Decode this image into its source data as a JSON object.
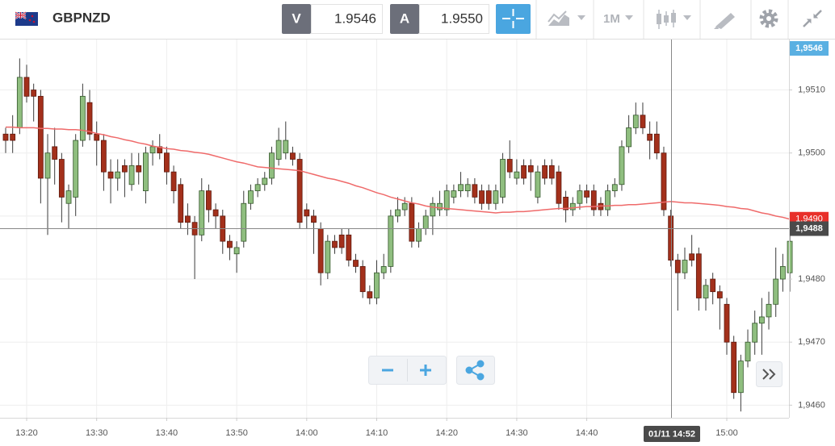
{
  "toolbar": {
    "symbol": "GBPNZD",
    "bid_tag": "V",
    "bid": "1.9546",
    "ask_tag": "A",
    "ask": "1.9550",
    "timeframe": "1M"
  },
  "chart_data": {
    "type": "candlestick",
    "categories": [
      null,
      null,
      null,
      "13:20",
      null,
      null,
      null,
      null,
      null,
      null,
      null,
      null,
      null,
      "13:30",
      null,
      null,
      null,
      null,
      null,
      null,
      null,
      null,
      null,
      "13:40",
      null,
      null,
      null,
      null,
      null,
      null,
      null,
      null,
      null,
      "13:50",
      null,
      null,
      null,
      null,
      null,
      null,
      null,
      null,
      null,
      "14:00",
      null,
      null,
      null,
      null,
      null,
      null,
      null,
      null,
      null,
      "14:10",
      null,
      null,
      null,
      null,
      null,
      null,
      null,
      null,
      null,
      "14:20",
      null,
      null,
      null,
      null,
      null,
      null,
      null,
      null,
      null,
      "14:30",
      null,
      null,
      null,
      null,
      null,
      null,
      null,
      null,
      null,
      "14:40",
      null,
      null,
      null,
      null,
      null,
      null,
      null,
      null,
      null,
      null,
      null,
      null,
      null,
      null,
      null,
      null,
      null,
      null,
      null,
      "15:00",
      null,
      null,
      null,
      null,
      null,
      null,
      null,
      null,
      null
    ],
    "ohlc": [
      [
        1.9503,
        1.9504,
        1.95,
        1.9502
      ],
      [
        1.9503,
        1.9506,
        1.95,
        1.9502
      ],
      [
        1.9504,
        1.9515,
        1.9503,
        1.9512
      ],
      [
        1.9512,
        1.9514,
        1.9508,
        1.9509
      ],
      [
        1.951,
        1.9511,
        1.9505,
        1.9509
      ],
      [
        1.9509,
        1.951,
        1.9492,
        1.9496
      ],
      [
        1.9496,
        1.9503,
        1.9487,
        1.95
      ],
      [
        1.9501,
        1.9504,
        1.9495,
        1.9499
      ],
      [
        1.9499,
        1.95,
        1.9489,
        1.9493
      ],
      [
        1.9492,
        1.9495,
        1.9488,
        1.9494
      ],
      [
        1.9493,
        1.9503,
        1.949,
        1.9502
      ],
      [
        1.9502,
        1.9511,
        1.9501,
        1.9509
      ],
      [
        1.9508,
        1.951,
        1.9502,
        1.9503
      ],
      [
        1.9503,
        1.9505,
        1.9498,
        1.9502
      ],
      [
        1.9502,
        1.9503,
        1.9494,
        1.9497
      ],
      [
        1.9497,
        1.9499,
        1.9492,
        1.9496
      ],
      [
        1.9496,
        1.9499,
        1.9494,
        1.9497
      ],
      [
        1.9498,
        1.9499,
        1.9493,
        1.9497
      ],
      [
        1.9495,
        1.95,
        1.9494,
        1.9498
      ],
      [
        1.9498,
        1.95,
        1.9495,
        1.9497
      ],
      [
        1.9494,
        1.9501,
        1.9492,
        1.95
      ],
      [
        1.95,
        1.9502,
        1.9498,
        1.9501
      ],
      [
        1.9501,
        1.9503,
        1.9499,
        1.95
      ],
      [
        1.95,
        1.9501,
        1.9495,
        1.9497
      ],
      [
        1.9497,
        1.9498,
        1.9492,
        1.9494
      ],
      [
        1.9495,
        1.9496,
        1.9488,
        1.9489
      ],
      [
        1.949,
        1.9492,
        1.9487,
        1.9489
      ],
      [
        1.9489,
        1.949,
        1.948,
        1.9487
      ],
      [
        1.9487,
        1.9496,
        1.9486,
        1.9494
      ],
      [
        1.9494,
        1.9495,
        1.9489,
        1.9491
      ],
      [
        1.9491,
        1.9492,
        1.9488,
        1.949
      ],
      [
        1.949,
        1.9491,
        1.9484,
        1.9486
      ],
      [
        1.9486,
        1.9487,
        1.9483,
        1.9485
      ],
      [
        1.9484,
        1.9486,
        1.9481,
        1.9485
      ],
      [
        1.9486,
        1.9494,
        1.9485,
        1.9492
      ],
      [
        1.9492,
        1.9495,
        1.9491,
        1.9494
      ],
      [
        1.9494,
        1.9496,
        1.9493,
        1.9495
      ],
      [
        1.9495,
        1.9497,
        1.9494,
        1.9496
      ],
      [
        1.9496,
        1.9501,
        1.9495,
        1.95
      ],
      [
        1.9499,
        1.9504,
        1.9498,
        1.9502
      ],
      [
        1.95,
        1.9505,
        1.9499,
        1.9502
      ],
      [
        1.95,
        1.9501,
        1.9498,
        1.9499
      ],
      [
        1.9499,
        1.95,
        1.9488,
        1.9489
      ],
      [
        1.9491,
        1.9492,
        1.9488,
        1.949
      ],
      [
        1.949,
        1.9491,
        1.9484,
        1.9489
      ],
      [
        1.9488,
        1.9489,
        1.9479,
        1.9481
      ],
      [
        1.9481,
        1.9487,
        1.948,
        1.9486
      ],
      [
        1.9486,
        1.9487,
        1.9484,
        1.9485
      ],
      [
        1.9487,
        1.9488,
        1.9484,
        1.9485
      ],
      [
        1.9487,
        1.9488,
        1.9482,
        1.9483
      ],
      [
        1.9483,
        1.9484,
        1.9481,
        1.9482
      ],
      [
        1.9482,
        1.9483,
        1.9477,
        1.9478
      ],
      [
        1.9478,
        1.9479,
        1.9476,
        1.9477
      ],
      [
        1.9477,
        1.9483,
        1.9476,
        1.9481
      ],
      [
        1.9481,
        1.9484,
        1.948,
        1.9482
      ],
      [
        1.9482,
        1.9491,
        1.9481,
        1.949
      ],
      [
        1.949,
        1.9493,
        1.9489,
        1.9491
      ],
      [
        1.9491,
        1.9493,
        1.949,
        1.9492
      ],
      [
        1.9492,
        1.9493,
        1.9485,
        1.9486
      ],
      [
        1.9486,
        1.9489,
        1.9485,
        1.9488
      ],
      [
        1.9488,
        1.9491,
        1.9487,
        1.949
      ],
      [
        1.949,
        1.9493,
        1.9487,
        1.9492
      ],
      [
        1.9491,
        1.9494,
        1.949,
        1.9492
      ],
      [
        1.9491,
        1.9495,
        1.949,
        1.9494
      ],
      [
        1.9493,
        1.9495,
        1.9492,
        1.9494
      ],
      [
        1.9494,
        1.9497,
        1.9493,
        1.9495
      ],
      [
        1.9494,
        1.9496,
        1.9493,
        1.9495
      ],
      [
        1.9495,
        1.9496,
        1.9492,
        1.9493
      ],
      [
        1.9494,
        1.9495,
        1.9491,
        1.9492
      ],
      [
        1.9494,
        1.9495,
        1.9491,
        1.9492
      ],
      [
        1.9492,
        1.9495,
        1.9491,
        1.9494
      ],
      [
        1.9493,
        1.95,
        1.9492,
        1.9499
      ],
      [
        1.9499,
        1.9502,
        1.9496,
        1.9497
      ],
      [
        1.9496,
        1.9499,
        1.9495,
        1.9497
      ],
      [
        1.9498,
        1.9499,
        1.9495,
        1.9496
      ],
      [
        1.9498,
        1.9499,
        1.9494,
        1.9497
      ],
      [
        1.9493,
        1.9498,
        1.9492,
        1.9497
      ],
      [
        1.9498,
        1.9499,
        1.9495,
        1.9496
      ],
      [
        1.9498,
        1.9499,
        1.9495,
        1.9496
      ],
      [
        1.9497,
        1.9498,
        1.9491,
        1.9492
      ],
      [
        1.9493,
        1.9494,
        1.9489,
        1.9491
      ],
      [
        1.9491,
        1.9493,
        1.949,
        1.9492
      ],
      [
        1.9492,
        1.9495,
        1.9491,
        1.9494
      ],
      [
        1.9494,
        1.9495,
        1.9492,
        1.9493
      ],
      [
        1.9494,
        1.9495,
        1.949,
        1.9491
      ],
      [
        1.9492,
        1.9493,
        1.949,
        1.9491
      ],
      [
        1.9491,
        1.9495,
        1.949,
        1.9494
      ],
      [
        1.9494,
        1.9496,
        1.9493,
        1.9495
      ],
      [
        1.9495,
        1.9502,
        1.9494,
        1.9501
      ],
      [
        1.9501,
        1.9506,
        1.95,
        1.9504
      ],
      [
        1.9504,
        1.9508,
        1.9503,
        1.9506
      ],
      [
        1.9506,
        1.9508,
        1.9503,
        1.9504
      ],
      [
        1.9503,
        1.9505,
        1.9499,
        1.9502
      ],
      [
        1.9503,
        1.9505,
        1.9499,
        1.95
      ],
      [
        1.95,
        1.9501,
        1.949,
        1.9491
      ],
      [
        1.949,
        1.9491,
        1.9482,
        1.9483
      ],
      [
        1.9483,
        1.9484,
        1.9475,
        1.9481
      ],
      [
        1.9481,
        1.9485,
        1.948,
        1.9483
      ],
      [
        1.9484,
        1.9487,
        1.9482,
        1.9483
      ],
      [
        1.9484,
        1.9485,
        1.9475,
        1.9477
      ],
      [
        1.9477,
        1.948,
        1.9475,
        1.9479
      ],
      [
        1.948,
        1.9481,
        1.9476,
        1.9478
      ],
      [
        1.9478,
        1.9479,
        1.9472,
        1.9477
      ],
      [
        1.9476,
        1.9477,
        1.9468,
        1.947
      ],
      [
        1.947,
        1.9471,
        1.9461,
        1.9462
      ],
      [
        1.9462,
        1.9468,
        1.9459,
        1.9467
      ],
      [
        1.9467,
        1.9472,
        1.9466,
        1.947
      ],
      [
        1.947,
        1.9475,
        1.9468,
        1.9473
      ],
      [
        1.9473,
        1.9477,
        1.9468,
        1.9474
      ],
      [
        1.9474,
        1.9478,
        1.9472,
        1.9476
      ],
      [
        1.9476,
        1.9485,
        1.9474,
        1.948
      ],
      [
        1.948,
        1.9484,
        1.9478,
        1.9482
      ],
      [
        1.9481,
        1.9487,
        1.9478,
        1.9486
      ]
    ],
    "up_color": "#8fbe7f",
    "down_color": "#a3301b",
    "moving_average": {
      "color": "#ef6a6a",
      "label": "1,9490",
      "values": [
        1.95041,
        1.95041,
        1.9504,
        1.9504,
        1.9504,
        1.95039,
        1.95039,
        1.95038,
        1.95038,
        1.95037,
        1.95037,
        1.95036,
        1.95034,
        1.95031,
        1.95029,
        1.95026,
        1.95024,
        1.95021,
        1.95019,
        1.95016,
        1.95014,
        1.95011,
        1.95009,
        1.95007,
        1.95006,
        1.95004,
        1.95003,
        1.95001,
        1.95,
        1.94998,
        1.94995,
        1.94992,
        1.94989,
        1.94986,
        1.94984,
        1.94981,
        1.94978,
        1.94977,
        1.94976,
        1.94975,
        1.94974,
        1.94973,
        1.94972,
        1.94969,
        1.94966,
        1.94963,
        1.9496,
        1.94958,
        1.94955,
        1.94952,
        1.94948,
        1.94945,
        1.94941,
        1.94937,
        1.94934,
        1.9493,
        1.94927,
        1.94924,
        1.94921,
        1.94919,
        1.94916,
        1.94914,
        1.94913,
        1.94912,
        1.94911,
        1.9491,
        1.94909,
        1.94908,
        1.94907,
        1.94906,
        1.94905,
        1.94906,
        1.94906,
        1.94907,
        1.94907,
        1.94908,
        1.94909,
        1.9491,
        1.94911,
        1.94912,
        1.94912,
        1.94913,
        1.94914,
        1.94915,
        1.94915,
        1.94916,
        1.94916,
        1.94917,
        1.94917,
        1.94918,
        1.94918,
        1.94919,
        1.9492,
        1.94921,
        1.94922,
        1.94923,
        1.94922,
        1.94921,
        1.94921,
        1.9492,
        1.94919,
        1.94918,
        1.94917,
        1.94915,
        1.94914,
        1.94912,
        1.94911,
        1.94908,
        1.94905,
        1.94903,
        1.949,
        1.94898,
        1.94895
      ]
    },
    "bid_label": "1,9546",
    "crosshair": {
      "time": "01/11 14:52",
      "price": {
        "value": 1.9488,
        "label": "1,9488"
      }
    },
    "ylim": [
      1.9458,
      1.9518
    ],
    "yticks": [
      {
        "value": 1.946,
        "label": "1,9460"
      },
      {
        "value": 1.947,
        "label": "1,9470"
      },
      {
        "value": 1.948,
        "label": "1,9480"
      },
      {
        "value": 1.949,
        "label": "1,9490"
      },
      {
        "value": 1.95,
        "label": "1,9500"
      },
      {
        "value": 1.951,
        "label": "1,9510"
      }
    ],
    "grid": true
  }
}
